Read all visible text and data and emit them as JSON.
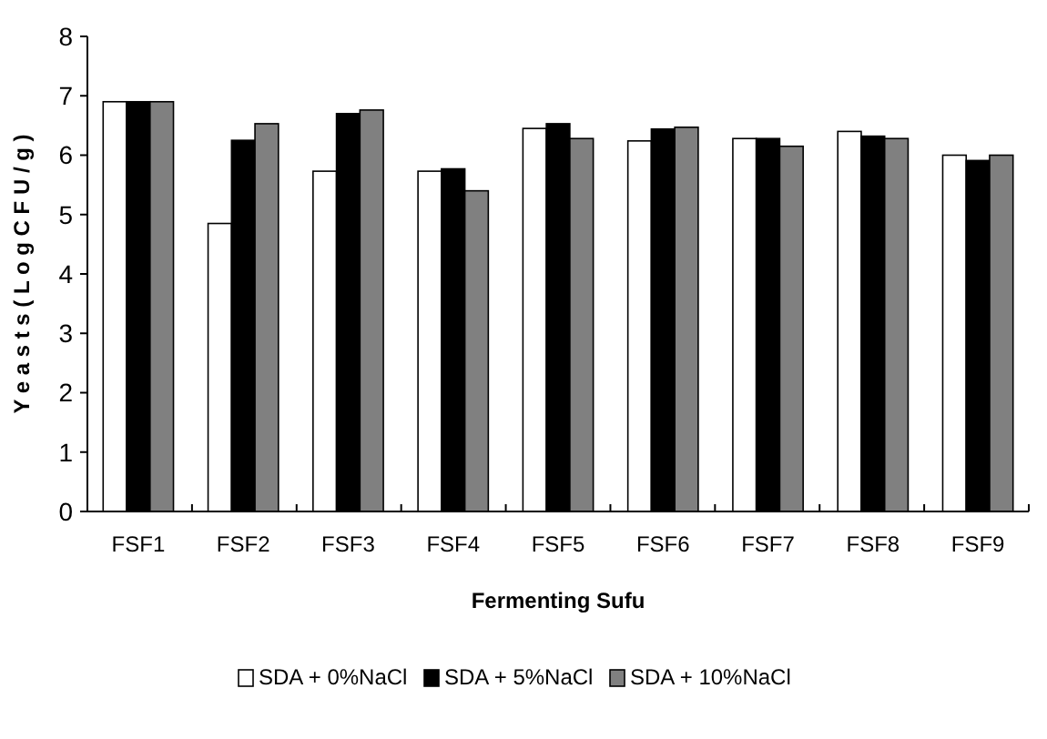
{
  "chart_data": {
    "type": "bar",
    "xlabel": "Fermenting Sufu",
    "ylabel": "Y e a s t s  ( L o g C F U / g )",
    "categories": [
      "FSF1",
      "FSF2",
      "FSF3",
      "FSF4",
      "FSF5",
      "FSF6",
      "FSF7",
      "FSF8",
      "FSF9"
    ],
    "series": [
      {
        "name": "SDA + 0%NaCl",
        "color": "#ffffff",
        "values": [
          6.9,
          4.85,
          5.73,
          5.73,
          6.45,
          6.24,
          6.28,
          6.4,
          6.0
        ]
      },
      {
        "name": "SDA + 5%NaCl",
        "color": "#000000",
        "values": [
          6.9,
          6.25,
          6.7,
          5.77,
          6.53,
          6.44,
          6.28,
          6.32,
          5.91
        ]
      },
      {
        "name": "SDA + 10%NaCl",
        "color": "#808080",
        "values": [
          6.9,
          6.53,
          6.76,
          5.4,
          6.28,
          6.47,
          6.15,
          6.28,
          6.0
        ]
      }
    ],
    "ylim": [
      0,
      8
    ],
    "yticks": [
      0,
      1,
      2,
      3,
      4,
      5,
      6,
      7,
      8
    ],
    "grid": false,
    "legend": "bottom"
  }
}
